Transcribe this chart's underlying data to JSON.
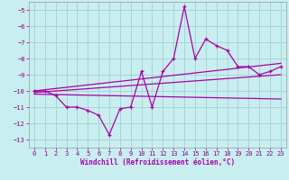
{
  "bg_color": "#c8eef0",
  "grid_color": "#aad4d4",
  "line_color": "#aa00aa",
  "xlabel": "Windchill (Refroidissement éolien,°C)",
  "xlim": [
    -0.5,
    23.5
  ],
  "ylim": [
    -13.5,
    -4.5
  ],
  "xticks": [
    0,
    1,
    2,
    3,
    4,
    5,
    6,
    7,
    8,
    9,
    10,
    11,
    12,
    13,
    14,
    15,
    16,
    17,
    18,
    19,
    20,
    21,
    22,
    23
  ],
  "yticks": [
    -13,
    -12,
    -11,
    -10,
    -9,
    -8,
    -7,
    -6,
    -5
  ],
  "main_x": [
    0,
    1,
    2,
    3,
    4,
    5,
    6,
    7,
    8,
    9,
    10,
    11,
    12,
    13,
    14,
    15,
    16,
    17,
    18,
    19,
    20,
    21,
    22,
    23
  ],
  "main_y": [
    -10.0,
    -10.0,
    -10.3,
    -11.0,
    -11.0,
    -11.2,
    -11.5,
    -12.7,
    -11.1,
    -11.0,
    -8.8,
    -11.0,
    -8.8,
    -8.0,
    -4.8,
    -8.0,
    -6.8,
    -7.2,
    -7.5,
    -8.5,
    -8.5,
    -9.0,
    -8.8,
    -8.5
  ],
  "trend1_x": [
    0,
    23
  ],
  "trend1_y": [
    -10.0,
    -8.3
  ],
  "trend2_x": [
    0,
    23
  ],
  "trend2_y": [
    -10.1,
    -9.0
  ],
  "trend3_x": [
    0,
    23
  ],
  "trend3_y": [
    -10.2,
    -10.5
  ]
}
